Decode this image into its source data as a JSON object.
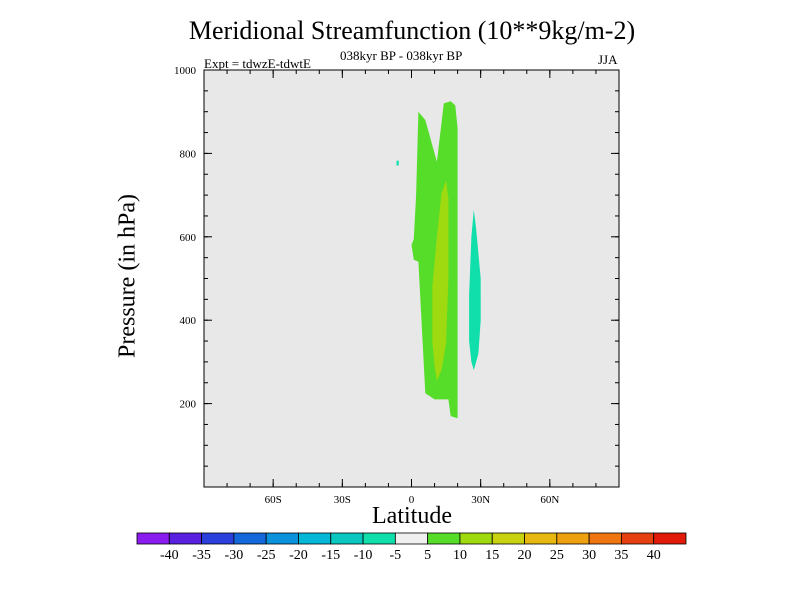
{
  "chart_data": {
    "type": "contour",
    "title": "Meridional Streamfunction (10**9kg/m-2)",
    "subtitle": "038kyr BP - 038kyr BP",
    "experiment": "Expt = tdwzE-tdwtE",
    "season": "JJA",
    "xlabel": "Latitude",
    "ylabel": "Pressure (in hPa)",
    "xlim": [
      -90,
      90
    ],
    "ylim": [
      1000,
      0
    ],
    "x_ticks": [
      {
        "value": -60,
        "label": "60S"
      },
      {
        "value": -30,
        "label": "30S"
      },
      {
        "value": 0,
        "label": "0"
      },
      {
        "value": 30,
        "label": "30N"
      },
      {
        "value": 60,
        "label": "60N"
      }
    ],
    "y_ticks": [
      {
        "value": 200,
        "label": "200"
      },
      {
        "value": 400,
        "label": "400"
      },
      {
        "value": 600,
        "label": "600"
      },
      {
        "value": 800,
        "label": "800"
      },
      {
        "value": 1000,
        "label": "1000"
      }
    ],
    "background_color": "#e8e8e8",
    "regions": [
      {
        "name": "green-5-10",
        "level": "5 to 10",
        "color": "#55dd2a",
        "points": [
          [
            3,
            900
          ],
          [
            2,
            700
          ],
          [
            1,
            595
          ],
          [
            0,
            580
          ],
          [
            1,
            545
          ],
          [
            3,
            540
          ],
          [
            6,
            225
          ],
          [
            10,
            210
          ],
          [
            16,
            210
          ],
          [
            17,
            170
          ],
          [
            20,
            165
          ],
          [
            20,
            860
          ],
          [
            19,
            915
          ],
          [
            17,
            925
          ],
          [
            14,
            920
          ],
          [
            11,
            780
          ],
          [
            6,
            880
          ]
        ]
      },
      {
        "name": "yellowgreen-10-15",
        "level": "10 to 15",
        "color": "#9fd90f",
        "points": [
          [
            9,
            350
          ],
          [
            10,
            290
          ],
          [
            11,
            255
          ],
          [
            13,
            280
          ],
          [
            15,
            345
          ],
          [
            16,
            500
          ],
          [
            16,
            690
          ],
          [
            15,
            735
          ],
          [
            13,
            705
          ],
          [
            11,
            600
          ],
          [
            9,
            480
          ]
        ]
      },
      {
        "name": "cyan-neg10-neg5",
        "level": "-10 to -5",
        "color": "#10dfac",
        "points": [
          [
            25,
            350
          ],
          [
            26,
            300
          ],
          [
            27,
            280
          ],
          [
            29,
            320
          ],
          [
            30,
            400
          ],
          [
            30,
            500
          ],
          [
            28,
            620
          ],
          [
            27,
            665
          ],
          [
            26,
            600
          ],
          [
            25,
            460
          ]
        ]
      },
      {
        "name": "cyan-dot",
        "level": "-10 to -5",
        "color": "#10dfac",
        "points": [
          [
            -6.5,
            770
          ],
          [
            -5.5,
            772
          ],
          [
            -5.5,
            783
          ],
          [
            -6.5,
            782
          ]
        ]
      }
    ],
    "colorbar": {
      "labels": [
        "-40",
        "-35",
        "-30",
        "-25",
        "-20",
        "-15",
        "-10",
        "-5",
        "5",
        "10",
        "15",
        "20",
        "25",
        "30",
        "35",
        "40"
      ],
      "colors": [
        "#8a1cf0",
        "#5a20e0",
        "#2a3fdc",
        "#1468dc",
        "#0a93dc",
        "#06b8d8",
        "#0ac8c0",
        "#10dfac",
        "#f0f0f0",
        "#55dd2a",
        "#9fd90f",
        "#c8d210",
        "#e6b810",
        "#eda010",
        "#ef7510",
        "#e64010",
        "#e21a0a"
      ]
    }
  }
}
